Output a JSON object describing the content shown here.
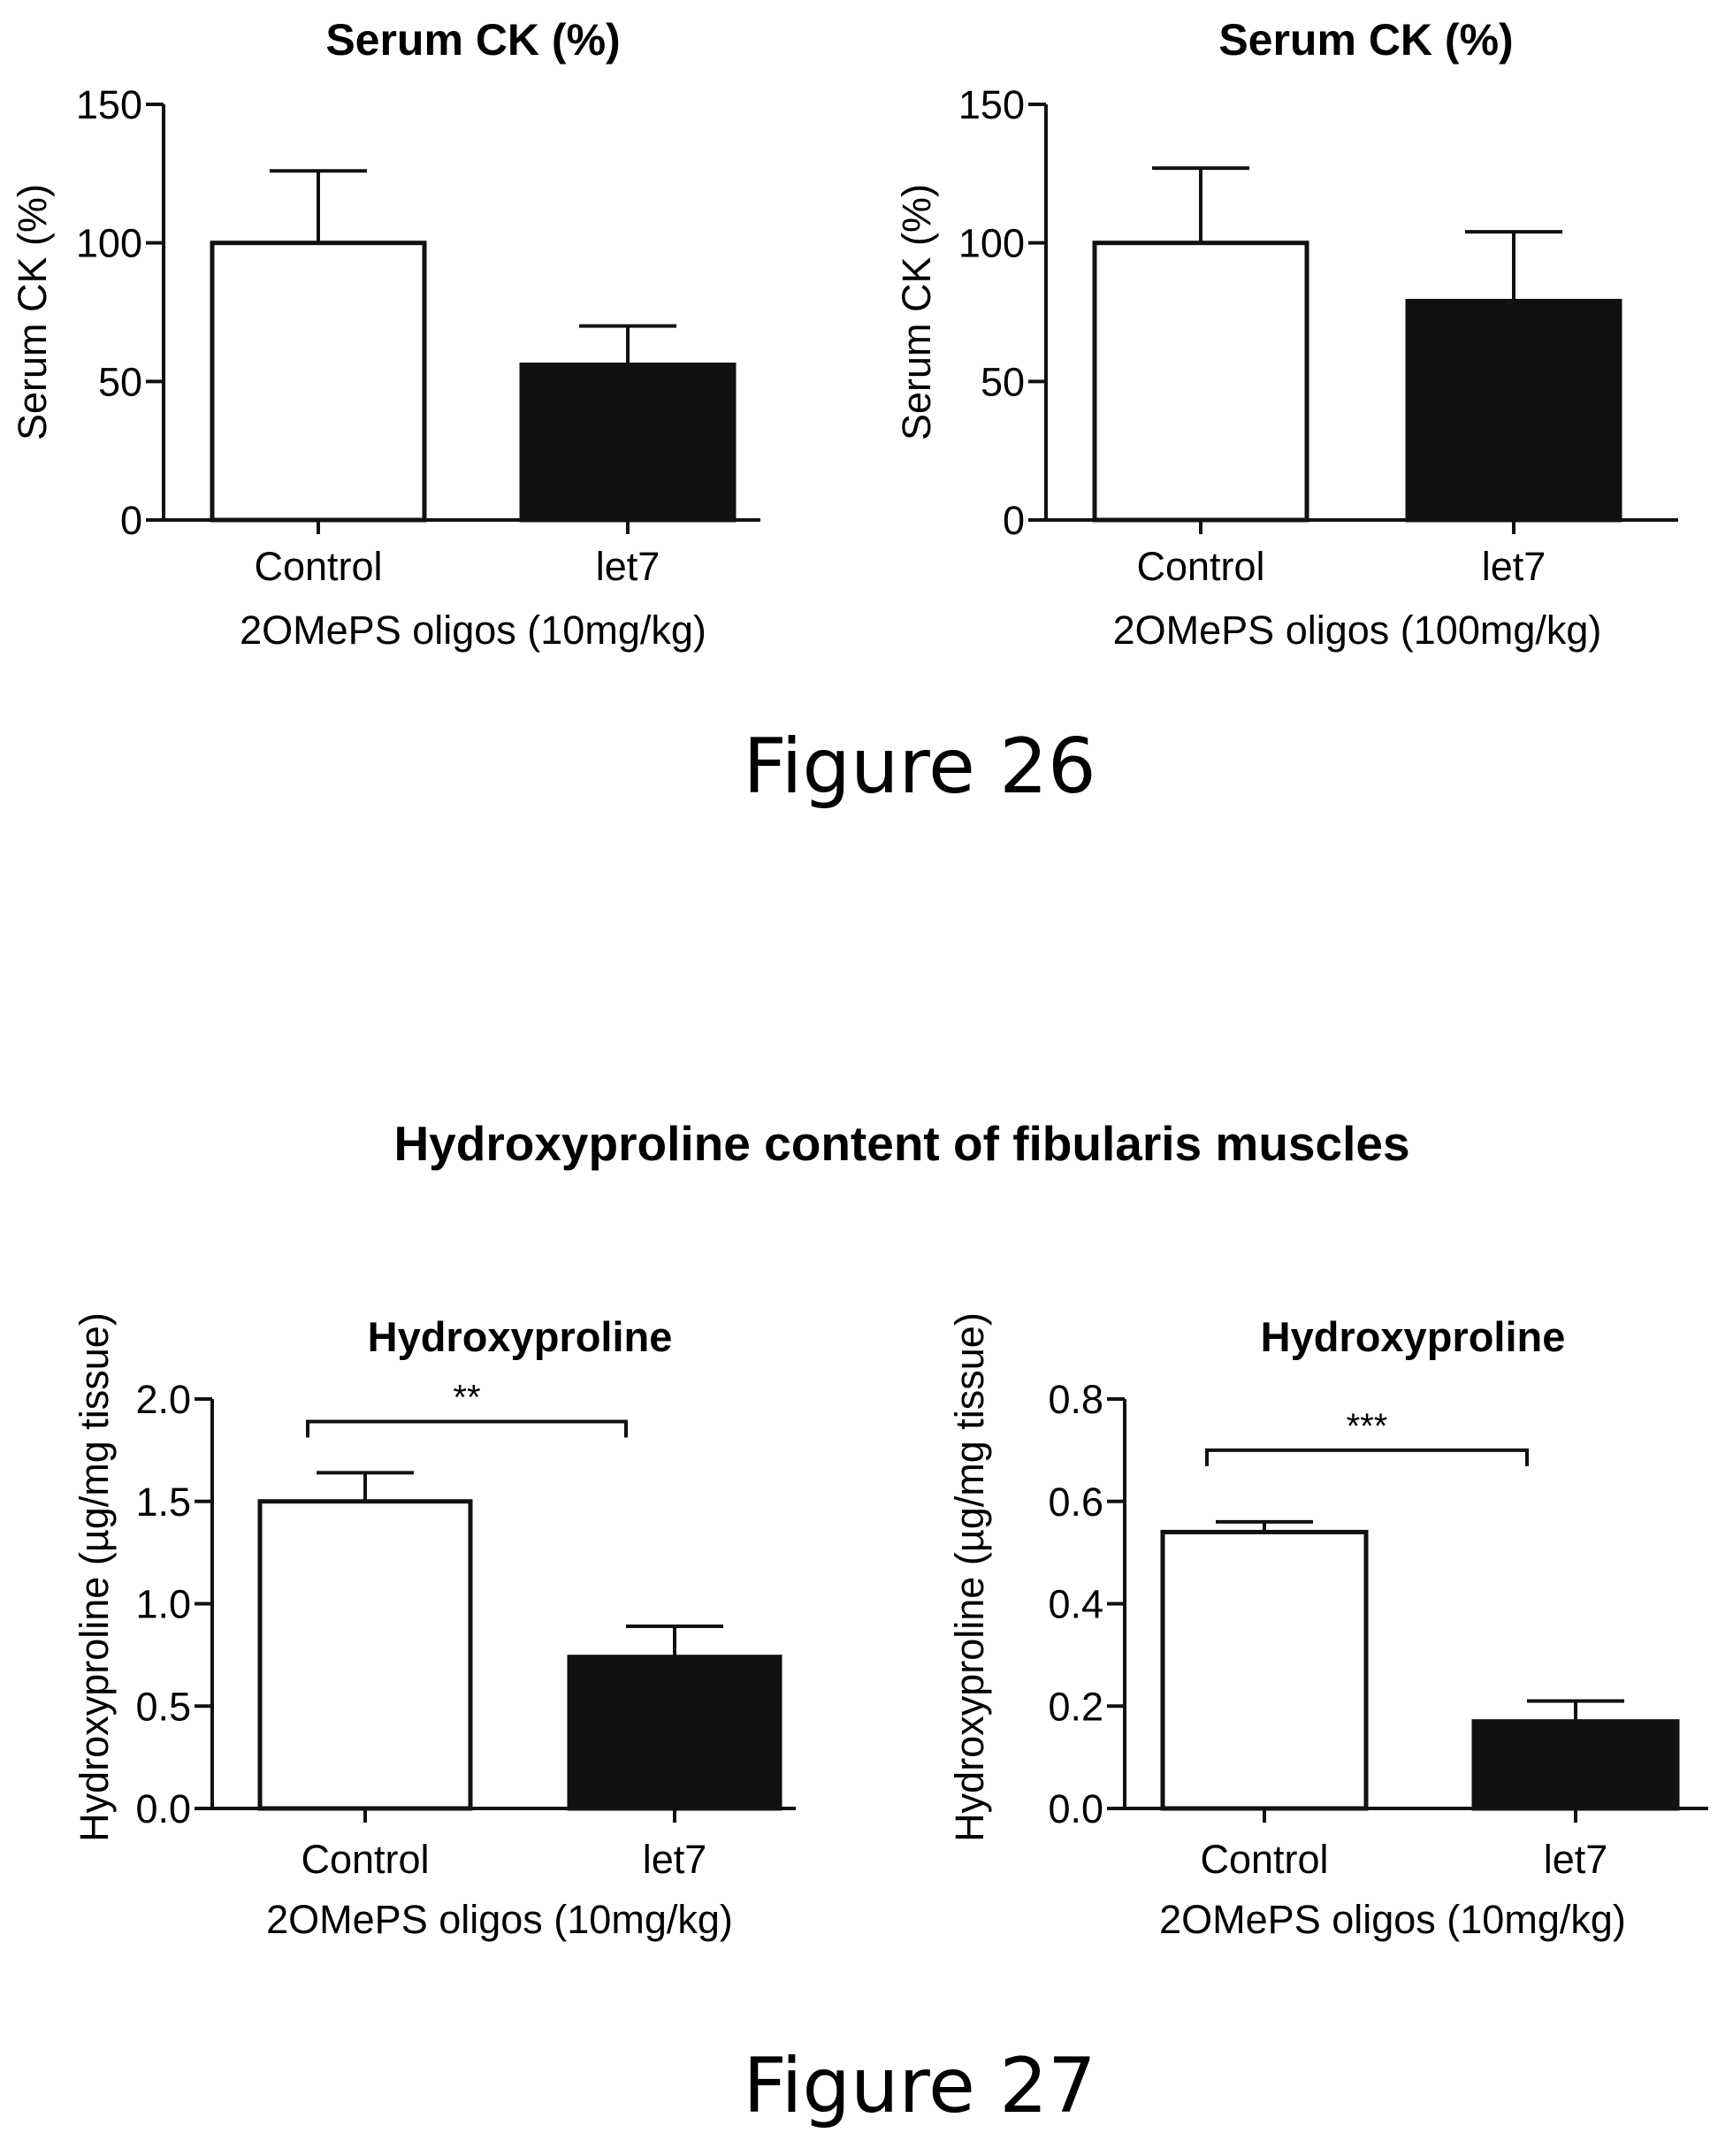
{
  "figure26": {
    "caption": "Figure 26"
  },
  "figure27": {
    "caption": "Figure 27",
    "heading": "Hydroxyproline content of fibularis muscles"
  },
  "colors": {
    "control_fill": "#ffffff",
    "let7_fill": "#111111",
    "stroke": "#111111"
  },
  "chart_data": [
    {
      "type": "bar",
      "title": "Serum CK (%)",
      "ylabel": "Serum CK (%)",
      "xlabel": "2OMePS oligos (10mg/kg)",
      "categories": [
        "Control",
        "let7"
      ],
      "values": [
        100,
        56
      ],
      "error_upper": [
        126,
        70
      ],
      "ylim": [
        0,
        150
      ],
      "yticks": [
        0,
        50,
        100,
        150
      ],
      "ytick_labels": [
        "0",
        "50",
        "100",
        "150"
      ],
      "bar_colors": [
        "#ffffff",
        "#111111"
      ],
      "significance": null,
      "grid": false
    },
    {
      "type": "bar",
      "title": "Serum CK (%)",
      "ylabel": "Serum CK (%)",
      "xlabel": "2OMePS oligos (100mg/kg)",
      "categories": [
        "Control",
        "let7"
      ],
      "values": [
        100,
        79
      ],
      "error_upper": [
        127,
        104
      ],
      "ylim": [
        0,
        150
      ],
      "yticks": [
        0,
        50,
        100,
        150
      ],
      "ytick_labels": [
        "0",
        "50",
        "100",
        "150"
      ],
      "bar_colors": [
        "#ffffff",
        "#111111"
      ],
      "significance": null,
      "grid": false
    },
    {
      "type": "bar",
      "title": "Hydroxyproline",
      "ylabel": "Hydroxyproline (µg/mg tissue)",
      "xlabel": "2OMePS oligos (10mg/kg)",
      "categories": [
        "Control",
        "let7"
      ],
      "values": [
        1.5,
        0.74
      ],
      "error_upper": [
        1.64,
        0.89
      ],
      "ylim": [
        0,
        2.0
      ],
      "yticks": [
        0,
        0.5,
        1.0,
        1.5,
        2.0
      ],
      "ytick_labels": [
        "0.0",
        "0.5",
        "1.0",
        "1.5",
        "2.0"
      ],
      "bar_colors": [
        "#ffffff",
        "#111111"
      ],
      "significance": {
        "label": "**",
        "bracket_y": 1.89
      },
      "grid": false
    },
    {
      "type": "bar",
      "title": "Hydroxyproline",
      "ylabel": "Hydroxyproline (µg/mg tissue)",
      "xlabel": "2OMePS oligos (10mg/kg)",
      "categories": [
        "Control",
        "let7"
      ],
      "values": [
        0.54,
        0.17
      ],
      "error_upper": [
        0.56,
        0.21
      ],
      "ylim": [
        0,
        0.8
      ],
      "yticks": [
        0,
        0.2,
        0.4,
        0.6,
        0.8
      ],
      "ytick_labels": [
        "0.0",
        "0.2",
        "0.4",
        "0.6",
        "0.8"
      ],
      "bar_colors": [
        "#ffffff",
        "#111111"
      ],
      "significance": {
        "label": "***",
        "bracket_y": 0.7
      },
      "grid": false
    }
  ]
}
